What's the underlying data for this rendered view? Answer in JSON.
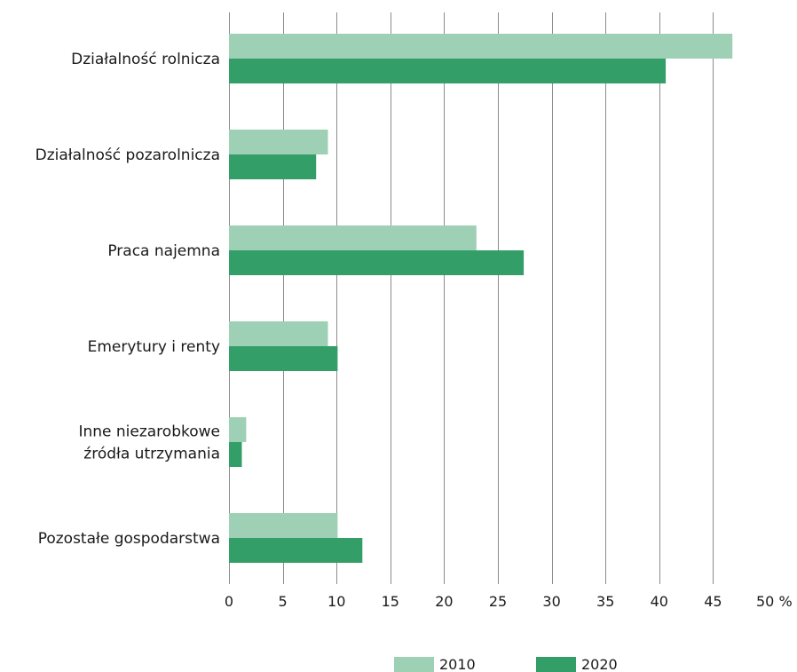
{
  "chart_data": {
    "type": "bar",
    "orientation": "horizontal",
    "categories": [
      [
        "Działalność rolnicza"
      ],
      [
        "Działalność pozarolnicza"
      ],
      [
        "Praca najemna"
      ],
      [
        "Emerytury i renty"
      ],
      [
        "Inne niezarobkowe",
        "źródła utrzymania"
      ],
      [
        "Pozostałe gospodarstwa"
      ]
    ],
    "series": [
      {
        "name": "2010",
        "color": "#9dd0b4",
        "values": [
          46.8,
          9.2,
          23.0,
          9.2,
          1.6,
          10.1
        ]
      },
      {
        "name": "2020",
        "color": "#339e68",
        "values": [
          40.6,
          8.1,
          27.4,
          10.1,
          1.2,
          12.4
        ]
      }
    ],
    "x_ticks": [
      "0",
      "5",
      "10",
      "15",
      "20",
      "25",
      "30",
      "35",
      "40",
      "45",
      "50 %"
    ],
    "xlim": [
      0,
      50
    ],
    "tick_step": 5,
    "grid": true,
    "legend_position": "bottom"
  }
}
